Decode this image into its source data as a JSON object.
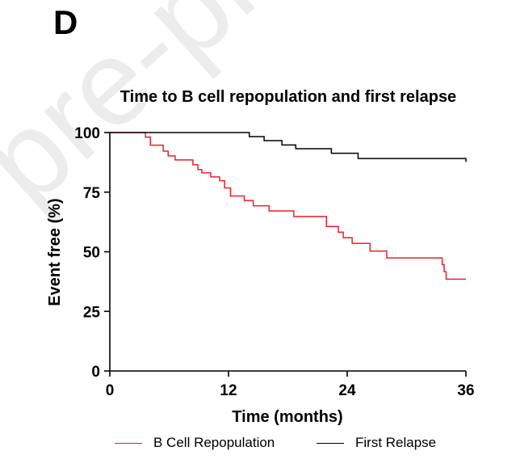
{
  "panel_label": "D",
  "watermark_text": "pre-proof",
  "colors": {
    "b_cell": "#e8202a",
    "relapse": "#000000",
    "watermark": "#eaeaea"
  },
  "chart_data": {
    "type": "line",
    "step": true,
    "title": "Time to B cell repopulation and first relapse",
    "xlabel": "Time (months)",
    "ylabel": "Event free (%)",
    "xlim": [
      0,
      36
    ],
    "ylim": [
      0,
      100
    ],
    "xticks": [
      0,
      12,
      24,
      36
    ],
    "yticks": [
      0,
      25,
      50,
      75,
      100
    ],
    "grid": false,
    "legend_position": "bottom",
    "series": [
      {
        "name": "B Cell Repopulation",
        "color": "#e8202a",
        "x": [
          0,
          3.1,
          3.6,
          4.1,
          5.4,
          5.9,
          6.6,
          8.4,
          8.9,
          9.3,
          10.2,
          11.1,
          11.6,
          12.2,
          13.6,
          14.5,
          16.1,
          18.6,
          21.6,
          21.9,
          23.1,
          23.6,
          24.5,
          26.3,
          28.0,
          29.2,
          33.4,
          33.6,
          33.8,
          34.0,
          36.0
        ],
        "y": [
          100,
          100,
          98.1,
          94.7,
          92.2,
          90.2,
          88.5,
          86.5,
          84.5,
          83.1,
          81.4,
          79.8,
          76.8,
          73.4,
          71.5,
          69.3,
          67.1,
          64.8,
          64.8,
          60.6,
          58.2,
          55.9,
          53.5,
          50.3,
          47.4,
          47.4,
          47.4,
          44.6,
          41.6,
          38.5,
          38.5
        ]
      },
      {
        "name": "First Relapse",
        "color": "#000000",
        "x": [
          0,
          11.9,
          14.1,
          15.6,
          17.4,
          18.8,
          22.4,
          25.1,
          36.0
        ],
        "y": [
          100,
          100,
          98.3,
          96.6,
          94.8,
          93.2,
          91.3,
          89.1,
          87.7
        ]
      }
    ]
  }
}
